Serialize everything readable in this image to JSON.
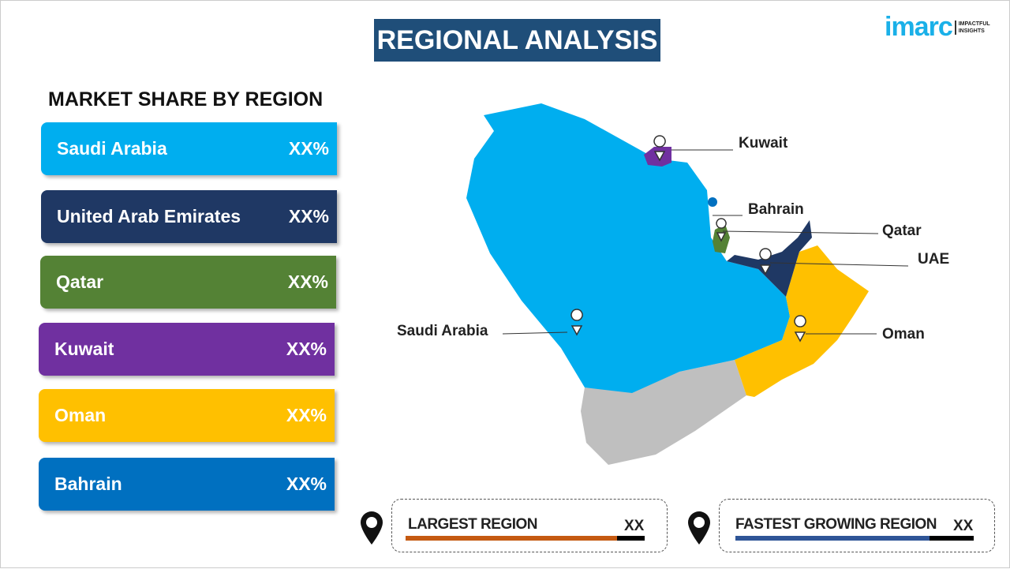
{
  "title": "REGIONAL ANALYSIS",
  "logo": {
    "word": "imarc",
    "tagline_1": "IMPACTFUL",
    "tagline_2": "INSIGHTS"
  },
  "market_share": {
    "heading": "MARKET SHARE BY REGION",
    "items": [
      {
        "label": "Saudi Arabia",
        "value": "XX%",
        "color": "#00aeef"
      },
      {
        "label": "United Arab Emirates",
        "value": "XX%",
        "color": "#1f3864"
      },
      {
        "label": "Qatar",
        "value": "XX%",
        "color": "#548235"
      },
      {
        "label": "Kuwait",
        "value": "XX%",
        "color": "#7030a0"
      },
      {
        "label": "Oman",
        "value": "XX%",
        "color": "#ffc000"
      },
      {
        "label": "Bahrain",
        "value": "XX%",
        "color": "#0070c0"
      }
    ]
  },
  "map_labels": {
    "kuwait": "Kuwait",
    "bahrain": "Bahrain",
    "qatar": "Qatar",
    "uae": "UAE",
    "saudi": "Saudi Arabia",
    "oman": "Oman"
  },
  "largest": {
    "label": "LARGEST REGION",
    "value": "XX",
    "color": "#c55a11"
  },
  "fastest": {
    "label": "FASTEST GROWING REGION",
    "value": "XX",
    "color": "#2f5597"
  }
}
